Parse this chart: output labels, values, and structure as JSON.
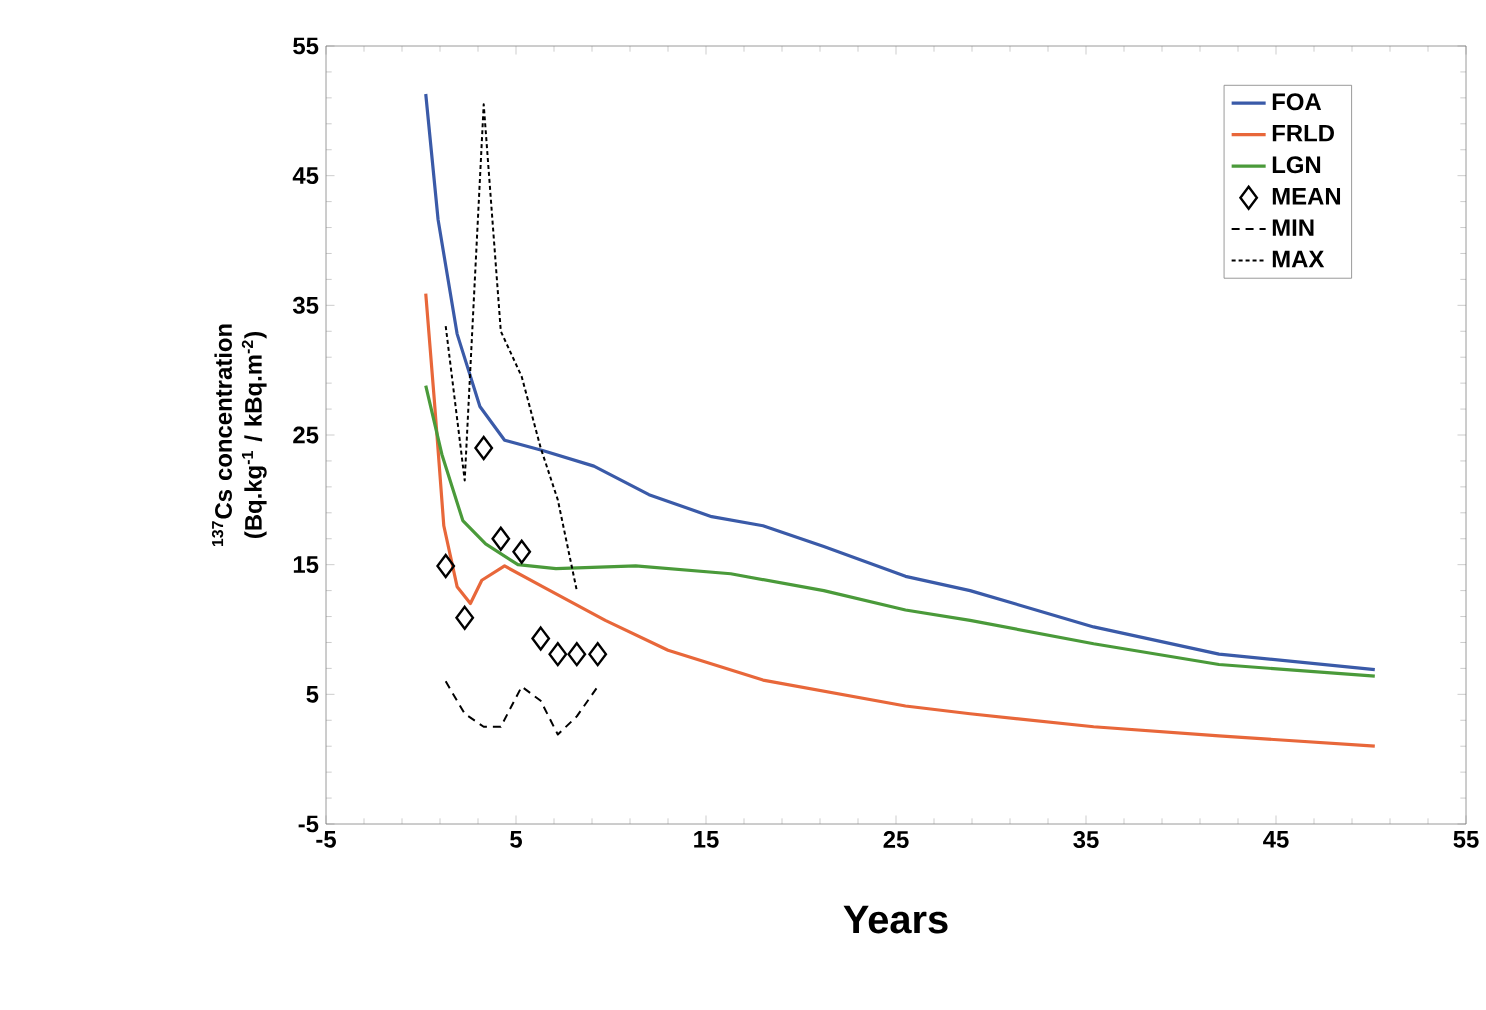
{
  "chart_data": {
    "type": "line",
    "xlabel": "Years",
    "ylabel": "$^{137}$Cs concentration (Bq.kg$^{-1}$ / kBq.m$^{-2}$)",
    "xlim": [
      -5,
      55
    ],
    "ylim": [
      -5,
      55
    ],
    "xticks": [
      -5,
      5,
      15,
      25,
      35,
      45,
      55
    ],
    "yticks": [
      -5,
      5,
      15,
      25,
      35,
      45,
      55
    ],
    "legend": "top right",
    "series": [
      {
        "name": "FOA",
        "color": "#3a5aa8",
        "line_style": "solid",
        "x": [
          0.25,
          0.9,
          1.9,
          3.1,
          4.4,
          6.4,
          9.1,
          12,
          15.3,
          18,
          21.2,
          25.5,
          28.9,
          35.4,
          42,
          50.2
        ],
        "values": [
          51.3,
          41.6,
          32.8,
          27.2,
          24.6,
          23.8,
          22.6,
          20.4,
          18.7,
          18.0,
          16.4,
          14.1,
          13.0,
          10.2,
          8.1,
          6.9
        ]
      },
      {
        "name": "FRLD",
        "color": "#e8673a",
        "line_style": "solid",
        "x": [
          0.25,
          0.7,
          1.2,
          1.9,
          2.6,
          3.2,
          4.4,
          6.4,
          9.7,
          13,
          18,
          25.5,
          28.9,
          35.4,
          42,
          50.2
        ],
        "values": [
          35.9,
          27.7,
          18.0,
          13.3,
          12.0,
          13.8,
          14.9,
          13.3,
          10.7,
          8.4,
          6.1,
          4.1,
          3.5,
          2.5,
          1.8,
          1.0
        ]
      },
      {
        "name": "LGN",
        "color": "#4a9a3a",
        "line_style": "solid",
        "x": [
          0.25,
          1.1,
          2.2,
          3.4,
          5.1,
          7.1,
          11.3,
          16.3,
          21.2,
          25.5,
          28.9,
          35.4,
          42,
          50.2
        ],
        "values": [
          28.8,
          23.5,
          18.4,
          16.6,
          15.0,
          14.7,
          14.9,
          14.3,
          13.0,
          11.5,
          10.7,
          8.9,
          7.3,
          6.4
        ]
      },
      {
        "name": "MEAN",
        "color": "#000000",
        "type": "scatter",
        "marker": "diamond",
        "x": [
          1.3,
          2.3,
          3.3,
          4.2,
          5.3,
          6.3,
          7.2,
          8.2,
          9.3
        ],
        "values": [
          14.9,
          10.9,
          24.0,
          17.0,
          16.0,
          9.3,
          8.1,
          8.1,
          8.1
        ]
      },
      {
        "name": "MIN",
        "color": "#000000",
        "line_style": "dashed",
        "x": [
          1.3,
          2.3,
          3.3,
          4.2,
          5.3,
          6.3,
          7.2,
          8.2,
          9.3
        ],
        "values": [
          6.0,
          3.5,
          2.5,
          2.5,
          5.6,
          4.5,
          1.9,
          3.3,
          5.6
        ]
      },
      {
        "name": "MAX",
        "color": "#000000",
        "line_style": "dotted",
        "x": [
          1.3,
          2.3,
          3.3,
          4.2,
          5.3,
          6.3,
          7.2,
          8.2
        ],
        "values": [
          33.4,
          21.5,
          50.5,
          33,
          29.5,
          24,
          20,
          13
        ]
      }
    ]
  }
}
